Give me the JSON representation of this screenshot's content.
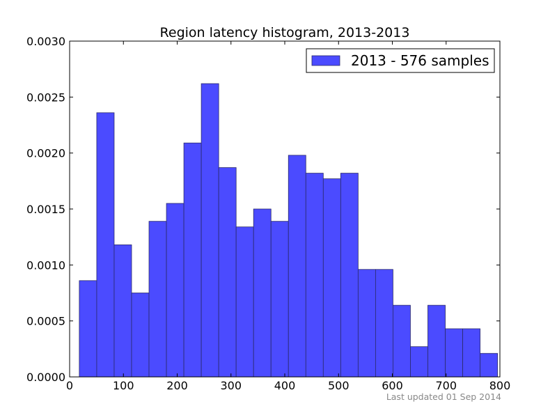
{
  "chart_data": {
    "type": "bar",
    "title": "Region latency histogram, 2013-2013",
    "footnote": "Last updated 01 Sep 2014",
    "xlim": [
      0,
      800
    ],
    "ylim": [
      0,
      0.003
    ],
    "x_ticks": [
      "0",
      "100",
      "200",
      "300",
      "400",
      "500",
      "600",
      "700",
      "800"
    ],
    "x_tick_values": [
      0,
      100,
      200,
      300,
      400,
      500,
      600,
      700,
      800
    ],
    "y_ticks": [
      "0.0000",
      "0.0005",
      "0.0010",
      "0.0015",
      "0.0020",
      "0.0025",
      "0.0030"
    ],
    "y_tick_values": [
      0,
      0.0005,
      0.001,
      0.0015,
      0.002,
      0.0025,
      0.003
    ],
    "legend_position": "top-right",
    "grid": false,
    "colors": {
      "bar_fill": "#4b4bff",
      "bar_stroke": "#2a2a6a",
      "axes": "#000000",
      "footnote": "#888888"
    },
    "series": [
      {
        "name": "2013 - 576 samples",
        "bin_edges": [
          18,
          50.4,
          82.8,
          115.2,
          147.6,
          180,
          212.4,
          244.8,
          277.2,
          309.6,
          342,
          374.4,
          406.8,
          439.2,
          471.6,
          504,
          536.4,
          568.8,
          601.2,
          633.6,
          666,
          698.4,
          730.8,
          763.2,
          795.6
        ],
        "values": [
          0.00086,
          0.00236,
          0.00118,
          0.00075,
          0.00139,
          0.00155,
          0.00209,
          0.00262,
          0.00187,
          0.00134,
          0.0015,
          0.00139,
          0.00198,
          0.00182,
          0.00177,
          0.00182,
          0.00096,
          0.00096,
          0.00064,
          0.00027,
          0.00064,
          0.00043,
          0.00043,
          0.00021
        ]
      }
    ]
  }
}
